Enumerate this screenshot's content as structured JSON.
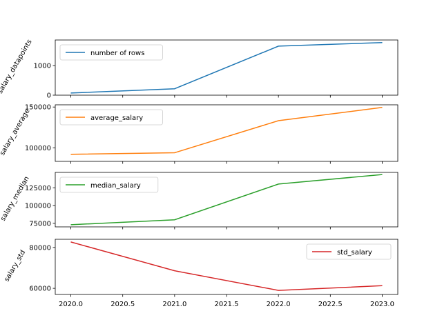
{
  "chart_data": [
    {
      "type": "line",
      "ylabel": "salary_datapoints",
      "x": [
        2020,
        2021,
        2022,
        2023
      ],
      "series": [
        {
          "name": "number of rows",
          "values": [
            72,
            217,
            1664,
            1785
          ],
          "color": "#1f77b4"
        }
      ],
      "ylim": [
        0,
        1871
      ],
      "yticks": [
        0,
        1000
      ],
      "ytick_labels": [
        "0",
        "1000"
      ],
      "legend": "upper left"
    },
    {
      "type": "line",
      "ylabel": "salary_average",
      "x": [
        2020,
        2021,
        2022,
        2023
      ],
      "series": [
        {
          "name": "average_salary",
          "values": [
            92300,
            94100,
            133300,
            149500
          ],
          "color": "#ff7f0e"
        }
      ],
      "ylim": [
        83600,
        152700
      ],
      "yticks": [
        100000,
        150000
      ],
      "ytick_labels": [
        "100000",
        "150000"
      ],
      "legend": "upper left"
    },
    {
      "type": "line",
      "ylabel": "salary_median",
      "x": [
        2020,
        2021,
        2022,
        2023
      ],
      "series": [
        {
          "name": "median_salary",
          "values": [
            73000,
            80000,
            130500,
            144000
          ],
          "color": "#2ca02c"
        }
      ],
      "ylim": [
        70000,
        147000
      ],
      "yticks": [
        75000,
        100000,
        125000
      ],
      "ytick_labels": [
        "75000",
        "100000",
        "125000"
      ],
      "legend": "upper left"
    },
    {
      "type": "line",
      "ylabel": "salary_std",
      "xlabel": "",
      "x": [
        2020,
        2021,
        2022,
        2023
      ],
      "series": [
        {
          "name": "std_salary",
          "values": [
            82700,
            68600,
            59000,
            61300
          ],
          "color": "#d62728"
        }
      ],
      "ylim": [
        57000,
        84000
      ],
      "yticks": [
        60000,
        80000
      ],
      "ytick_labels": [
        "60000",
        "80000"
      ],
      "xlim": [
        2019.85,
        2023.15
      ],
      "xticks": [
        2020.0,
        2020.5,
        2021.0,
        2021.5,
        2022.0,
        2022.5,
        2023.0
      ],
      "xtick_labels": [
        "2020.0",
        "2020.5",
        "2021.0",
        "2021.5",
        "2022.0",
        "2022.5",
        "2023.0"
      ],
      "legend": "upper right"
    }
  ]
}
